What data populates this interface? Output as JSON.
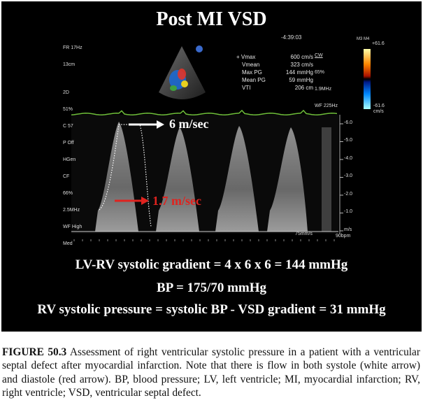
{
  "echo": {
    "title": "Post MI VSD",
    "left_settings": [
      "FR 17Hz",
      "13cm",
      "",
      "2D",
      "51%",
      "C 57",
      "P Off",
      "HGen",
      "CF",
      "66%",
      "2.5MHz",
      "WF High",
      "Med"
    ],
    "time": "-4:39:03",
    "mode": [
      "CW",
      "65%",
      "1.9MHz",
      "WF 225Hz"
    ],
    "measurements": [
      {
        "label": "+ Vmax",
        "value": "600 cm/s"
      },
      {
        "label": "Vmean",
        "value": "323 cm/s"
      },
      {
        "label": "Max PG",
        "value": "144 mmHg"
      },
      {
        "label": "Mean PG",
        "value": "59 mmHg"
      },
      {
        "label": "VTI",
        "value": "206 cm"
      }
    ],
    "colorbar": {
      "top_label": "M3 M4",
      "top_value": "+61.6",
      "bottom_value": "-61.6",
      "unit": "cm/s"
    },
    "scale_ticks": [
      "-6.0",
      "-5.0",
      "-4.0",
      "-3.0",
      "-2.0",
      "-1.0"
    ],
    "scale_unit": "m/s",
    "sweep": "75mm/s",
    "heart_rate": "90bpm",
    "white_arrow_label": "6 m/sec",
    "red_arrow_label": "1.7 m/sec",
    "equations": [
      "LV-RV systolic gradient = 4 x 6 x 6 = 144 mmHg",
      "BP = 175/70 mmHg",
      "RV systolic pressure = systolic BP - VSD gradient = 31 mmHg"
    ],
    "colors": {
      "white_arrow": "#ffffff",
      "red_arrow": "#e0231f",
      "ecg": "#6fbf3a",
      "background": "#000000"
    }
  },
  "caption": {
    "label": "FIGURE 50.3",
    "text": " Assessment of right ventricular systolic pressure in a patient with a ventricular septal defect after myocardial infarction. Note that there is flow in both systole (white arrow) and diastole (red arrow). BP, blood pressure; LV, left ventricle; MI, myocardial infarction; RV, right ventricle; VSD, ventricular septal defect."
  }
}
